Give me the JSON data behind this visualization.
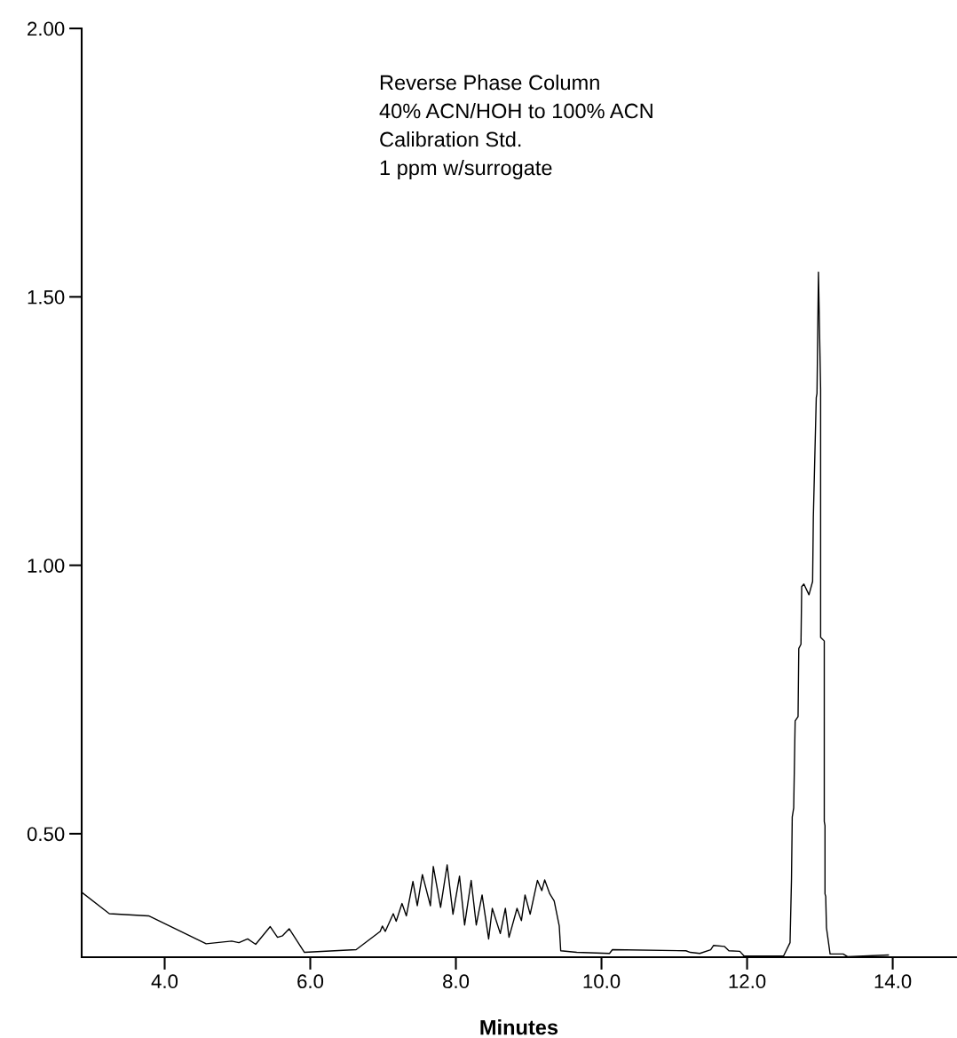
{
  "chart_data": {
    "type": "line",
    "xlabel": "Minutes",
    "annotations": [
      "Reverse Phase Column",
      "40% ACN/HOH to 100% ACN",
      "Calibration Std.",
      "1 ppm w/surrogate"
    ],
    "series": [
      {
        "color": "#000000",
        "x": [
          2.86,
          3.24,
          3.78,
          4.57,
          4.92,
          5.02,
          5.14,
          5.25,
          5.45,
          5.55,
          5.62,
          5.71,
          5.92,
          6.63,
          6.96,
          6.99,
          7.03,
          7.14,
          7.18,
          7.26,
          7.32,
          7.41,
          7.47,
          7.54,
          7.65,
          7.69,
          7.79,
          7.88,
          7.96,
          8.05,
          8.12,
          8.21,
          8.28,
          8.36,
          8.45,
          8.5,
          8.61,
          8.68,
          8.73,
          8.84,
          8.9,
          8.95,
          9.02,
          9.12,
          9.18,
          9.22,
          9.29,
          9.35,
          9.42,
          9.44,
          9.66,
          10.11,
          10.15,
          11.16,
          11.22,
          11.35,
          11.5,
          11.54,
          11.69,
          11.75,
          11.9,
          11.96,
          12.5,
          12.59,
          12.61,
          12.62,
          12.64,
          12.66,
          12.7,
          12.71,
          12.74,
          12.75,
          12.78,
          12.85,
          12.9,
          12.91,
          12.95,
          12.96,
          12.98,
          13.01,
          13.01,
          13.06,
          13.06,
          13.07,
          13.07,
          13.08,
          13.09,
          13.14,
          13.32,
          13.38,
          13.94
        ],
        "values": [
          0.391,
          0.351,
          0.347,
          0.295,
          0.3,
          0.297,
          0.304,
          0.294,
          0.327,
          0.307,
          0.31,
          0.323,
          0.279,
          0.284,
          0.318,
          0.328,
          0.318,
          0.351,
          0.337,
          0.37,
          0.347,
          0.411,
          0.366,
          0.424,
          0.366,
          0.439,
          0.363,
          0.442,
          0.35,
          0.421,
          0.33,
          0.413,
          0.33,
          0.386,
          0.304,
          0.361,
          0.314,
          0.361,
          0.307,
          0.361,
          0.338,
          0.386,
          0.35,
          0.413,
          0.394,
          0.414,
          0.388,
          0.375,
          0.328,
          0.282,
          0.279,
          0.277,
          0.284,
          0.282,
          0.279,
          0.277,
          0.284,
          0.292,
          0.29,
          0.282,
          0.281,
          0.272,
          0.272,
          0.297,
          0.416,
          0.531,
          0.548,
          0.71,
          0.718,
          0.845,
          0.853,
          0.96,
          0.965,
          0.945,
          0.97,
          1.09,
          1.312,
          1.32,
          1.546,
          1.328,
          0.866,
          0.859,
          0.523,
          0.515,
          0.388,
          0.383,
          0.325,
          0.276,
          0.276,
          0.271,
          0.274
        ]
      }
    ],
    "xlim": [
      2.86,
      14.87
    ],
    "ylim": [
      0.27,
      2.0
    ],
    "xticks": [
      {
        "value": 4,
        "label": "4.0"
      },
      {
        "value": 6,
        "label": "6.0"
      },
      {
        "value": 8,
        "label": "8.0"
      },
      {
        "value": 10,
        "label": "10.0"
      },
      {
        "value": 12,
        "label": "12.0"
      },
      {
        "value": 14,
        "label": "14.0"
      }
    ],
    "yticks": [
      {
        "value": 0.5,
        "label": "0.50"
      },
      {
        "value": 1.0,
        "label": "1.00"
      },
      {
        "value": 1.5,
        "label": "1.50"
      },
      {
        "value": 2.0,
        "label": "2.00"
      }
    ],
    "grid": false,
    "marker": "none",
    "line_style": "solid"
  }
}
